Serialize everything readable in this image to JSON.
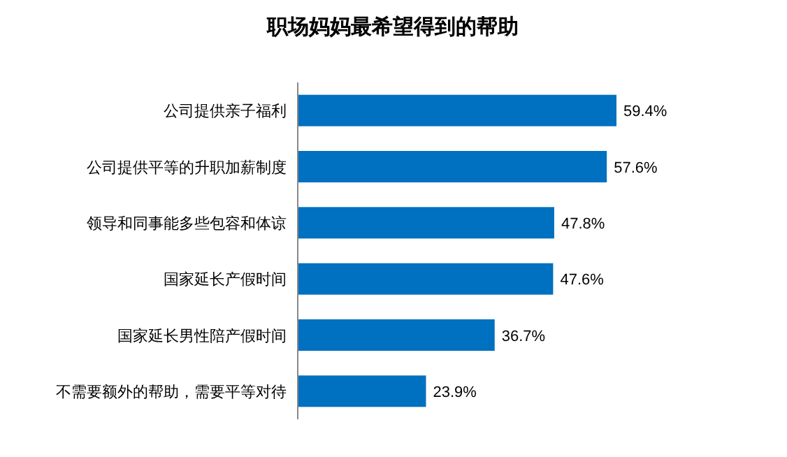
{
  "chart_data": {
    "type": "bar",
    "orientation": "horizontal",
    "title": "职场妈妈最希望得到的帮助",
    "categories": [
      "公司提供亲子福利",
      "公司提供平等的升职加薪制度",
      "领导和同事能多些包容和体谅",
      "国家延长产假时间",
      "国家延长男性陪产假时间",
      "不需要额外的帮助，需要平等对待"
    ],
    "values": [
      59.4,
      57.6,
      47.8,
      47.6,
      36.7,
      23.9
    ],
    "value_labels": [
      "59.4%",
      "57.6%",
      "47.8%",
      "47.6%",
      "36.7%",
      "23.9%"
    ],
    "color": "#0070c0"
  }
}
